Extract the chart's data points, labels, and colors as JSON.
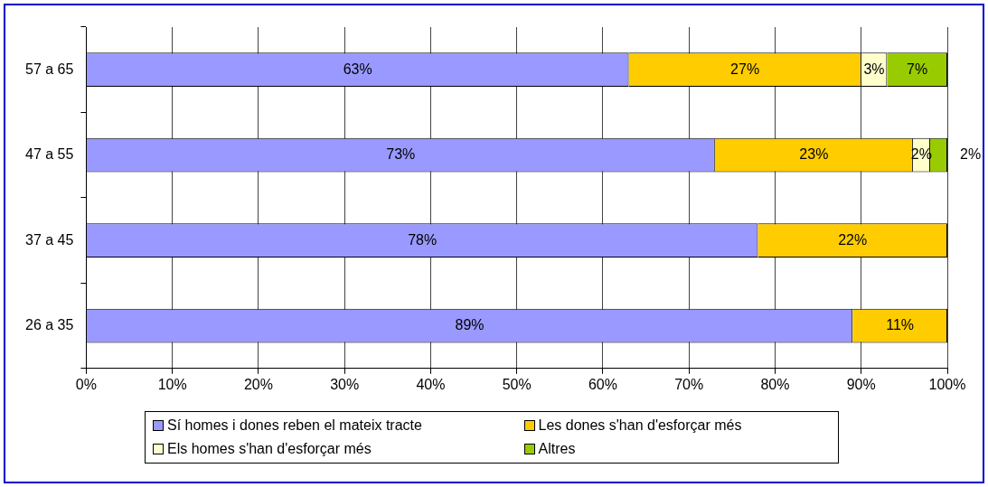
{
  "chart_data": {
    "type": "bar",
    "orientation": "horizontal",
    "stacked": true,
    "categories": [
      "57 a 65",
      "47 a 55",
      "37 a 45",
      "26 a 35"
    ],
    "series": [
      {
        "name": "Sí homes i dones reben el mateix tracte",
        "color": "#9999ff",
        "values": [
          63,
          73,
          78,
          89
        ],
        "value_labels": [
          "63%",
          "73%",
          "78%",
          "89%"
        ]
      },
      {
        "name": "Les dones s'han d'esforçar més",
        "color": "#ffcc00",
        "values": [
          27,
          23,
          22,
          11
        ],
        "value_labels": [
          "27%",
          "23%",
          "22%",
          "11%"
        ]
      },
      {
        "name": "Els homes s'han d'esforçar més",
        "color": "#ffffcc",
        "values": [
          3,
          2,
          null,
          null
        ],
        "value_labels": [
          "3%",
          "2%",
          null,
          null
        ]
      },
      {
        "name": "Altres",
        "color": "#99cc00",
        "values": [
          7,
          2,
          null,
          null
        ],
        "value_labels": [
          "7%",
          "2%",
          null,
          null
        ]
      }
    ],
    "xlim": [
      0,
      100
    ],
    "xticks": [
      {
        "value": 0,
        "label": "0%"
      },
      {
        "value": 10,
        "label": "10%"
      },
      {
        "value": 20,
        "label": "20%"
      },
      {
        "value": 30,
        "label": "30%"
      },
      {
        "value": 40,
        "label": "40%"
      },
      {
        "value": 50,
        "label": "50%"
      },
      {
        "value": 60,
        "label": "60%"
      },
      {
        "value": 70,
        "label": "70%"
      },
      {
        "value": 80,
        "label": "80%"
      },
      {
        "value": 90,
        "label": "90%"
      },
      {
        "value": 100,
        "label": "100%"
      }
    ],
    "grid": "x",
    "legend": "bottom"
  }
}
